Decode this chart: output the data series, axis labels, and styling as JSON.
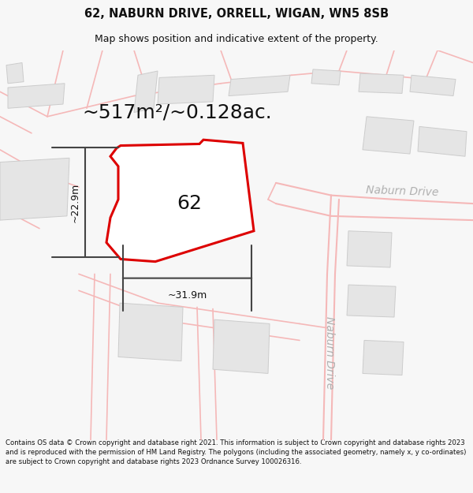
{
  "title_line1": "62, NABURN DRIVE, ORRELL, WIGAN, WN5 8SB",
  "title_line2": "Map shows position and indicative extent of the property.",
  "area_text": "~517m²/~0.128ac.",
  "label_62": "62",
  "dim_width": "~31.9m",
  "dim_height": "~22.9m",
  "road_label_h": "Naburn Drive",
  "road_label_v": "Naburn Drive",
  "footer_text": "Contains OS data © Crown copyright and database right 2021. This information is subject to Crown copyright and database rights 2023 and is reproduced with the permission of HM Land Registry. The polygons (including the associated geometry, namely x, y co-ordinates) are subject to Crown copyright and database rights 2023 Ordnance Survey 100026316.",
  "bg_color": "#f7f7f7",
  "map_bg": "#ffffff",
  "plot_stroke": "#dd0000",
  "road_line_color": "#f5b8b8",
  "road_line_color2": "#e89090",
  "dim_line_color": "#444444",
  "text_color": "#111111",
  "road_text_color": "#b0b0b0",
  "building_fill": "#e5e5e5",
  "building_edge": "#cccccc",
  "title_fontsize": 10.5,
  "subtitle_fontsize": 9,
  "area_fontsize": 18,
  "label_fontsize": 18,
  "dim_fontsize": 9,
  "road_fontsize": 10
}
